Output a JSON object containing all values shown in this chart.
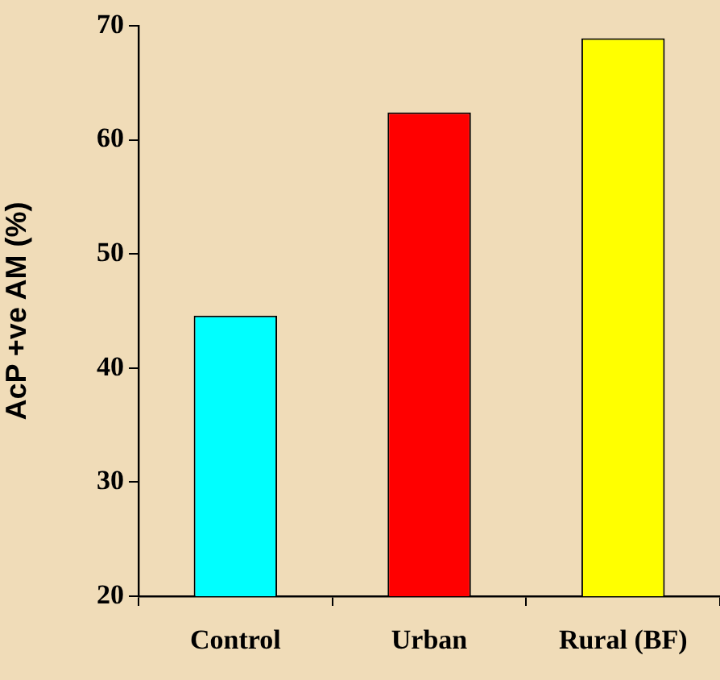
{
  "chart_data": {
    "type": "bar",
    "ylabel": "AcP +ve AM (%)",
    "categories": [
      "Control",
      "Urban",
      "Rural (BF)"
    ],
    "values": [
      44.6,
      62.4,
      68.9
    ],
    "colors": [
      "#00ffff",
      "#ff0000",
      "#ffff00"
    ],
    "ylim": [
      20,
      70
    ],
    "yticks": [
      20,
      30,
      40,
      50,
      60,
      70
    ]
  }
}
